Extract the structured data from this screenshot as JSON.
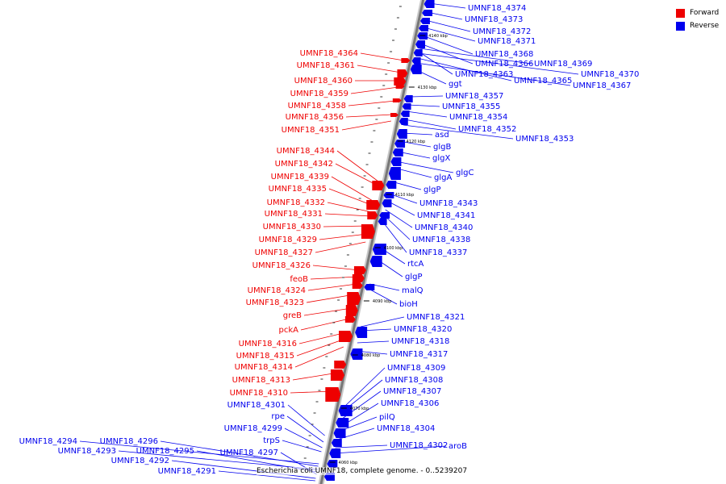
{
  "caption": "Escherichia coli UMNF18, complete genome. - 0..5239207",
  "colors": {
    "forward": "#ee0000",
    "reverse": "#0000ee",
    "axis": "#888888"
  },
  "legend": [
    {
      "label": "Forward",
      "color": "#ee0000"
    },
    {
      "label": "Reverse",
      "color": "#0000ee"
    }
  ],
  "axis_ticks": [
    {
      "label": "4140 kbp"
    },
    {
      "label": "4130 kbp"
    },
    {
      "label": "4120 kbp"
    },
    {
      "label": "4110 kbp"
    },
    {
      "label": "4100 kbp"
    },
    {
      "label": "4090 kbp"
    },
    {
      "label": "4080 kbp"
    },
    {
      "label": "4070 kbp"
    },
    {
      "label": "4060 kbp"
    }
  ],
  "forward_labels": [
    "UMNF18_4364",
    "UMNF18_4361",
    "UMNF18_4360",
    "UMNF18_4359",
    "UMNF18_4358",
    "UMNF18_4356",
    "UMNF18_4351",
    "UMNF18_4344",
    "UMNF18_4342",
    "UMNF18_4339",
    "UMNF18_4335",
    "UMNF18_4332",
    "UMNF18_4331",
    "UMNF18_4330",
    "UMNF18_4329",
    "UMNF18_4327",
    "UMNF18_4326",
    "feoB",
    "UMNF18_4324",
    "UMNF18_4323",
    "greB",
    "pckA",
    "UMNF18_4316",
    "UMNF18_4315",
    "UMNF18_4314",
    "UMNF18_4313",
    "UMNF18_4310"
  ],
  "reverse_right_labels": [
    "UMNF18_4374",
    "UMNF18_4373",
    "UMNF18_4372",
    "UMNF18_4371",
    "UMNF18_4368",
    "UMNF18_4366",
    "UMNF18_4369",
    "UMNF18_4363",
    "UMNF18_4365",
    "UMNF18_4370",
    "UMNF18_4367",
    "ggt",
    "UMNF18_4357",
    "UMNF18_4355",
    "UMNF18_4354",
    "UMNF18_4352",
    "UMNF18_4353",
    "asd",
    "glgB",
    "glgX",
    "glgC",
    "glgA",
    "glgP",
    "UMNF18_4343",
    "UMNF18_4341",
    "UMNF18_4340",
    "UMNF18_4338",
    "UMNF18_4337",
    "rtcA",
    "glgP",
    "malQ",
    "bioH",
    "UMNF18_4321",
    "UMNF18_4320",
    "UMNF18_4318",
    "UMNF18_4317",
    "UMNF18_4309",
    "UMNF18_4308",
    "UMNF18_4307",
    "UMNF18_4306",
    "pilQ",
    "UMNF18_4304",
    "UMNF18_4302",
    "aroB"
  ],
  "reverse_left_labels": [
    "UMNF18_4301",
    "rpe",
    "UMNF18_4299",
    "trpS",
    "UMNF18_4294",
    "UMNF18_4296",
    "UMNF18_4293",
    "UMNF18_4295",
    "UMNF18_4297",
    "UMNF18_4292",
    "UMNF18_4291"
  ]
}
